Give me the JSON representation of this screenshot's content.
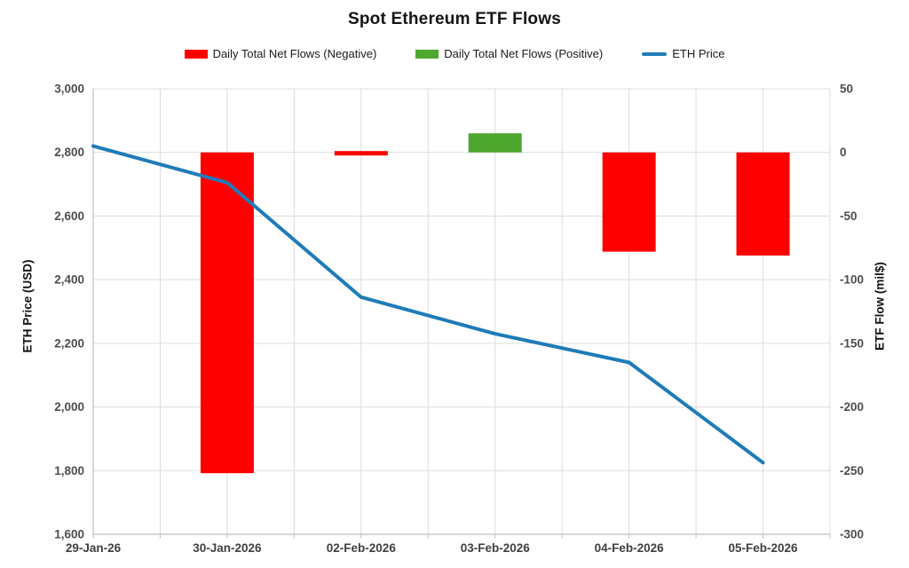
{
  "chart_data": {
    "type": "combo",
    "title": "Spot Ethereum ETF Flows",
    "categories": [
      "29-Jan-26",
      "30-Jan-2026",
      "02-Feb-2026",
      "03-Feb-2026",
      "04-Feb-2026",
      "05-Feb-2026"
    ],
    "series": [
      {
        "name": "Daily Total Net Flows (Negative)",
        "type": "bar",
        "axis": "right",
        "color": "#fe0000",
        "values": [
          null,
          -252,
          -2,
          null,
          -78,
          -81
        ]
      },
      {
        "name": "Daily Total Net Flows (Positive)",
        "type": "bar",
        "axis": "right",
        "color": "#4ea72e",
        "values": [
          null,
          null,
          null,
          15,
          null,
          null
        ]
      },
      {
        "name": "ETH Price",
        "type": "line",
        "axis": "left",
        "color": "#1f7bb8",
        "values": [
          2820,
          2705,
          2345,
          2230,
          2140,
          1825
        ]
      }
    ],
    "left_axis": {
      "title": "ETH Price (USD)",
      "min": 1600,
      "max": 3000,
      "tick_step": 200,
      "tick_labels": [
        "3,000",
        "2,800",
        "2,600",
        "2,400",
        "2,200",
        "2,000",
        "1,800",
        "1,600"
      ]
    },
    "right_axis": {
      "title": "ETF Flow (mil$)",
      "min": -300,
      "max": 50,
      "tick_step": 50,
      "tick_labels": [
        "50",
        "0",
        "-50",
        "-100",
        "-150",
        "-200",
        "-250",
        "-300"
      ]
    },
    "legend_position": "top",
    "grid": true
  },
  "colors": {
    "gridline": "#dcdcdc",
    "axis_line": "#bdbdbd",
    "tick_text": "#4d4d4d",
    "title_text": "#141414"
  }
}
